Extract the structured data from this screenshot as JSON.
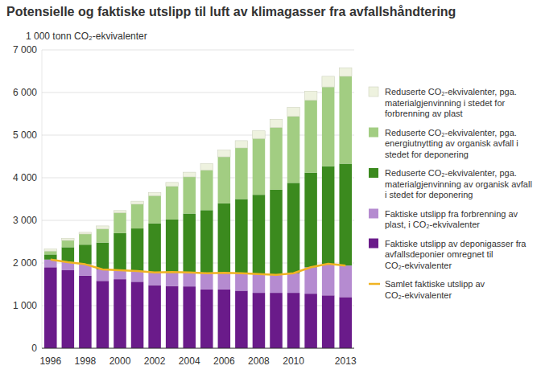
{
  "chart_data": {
    "type": "bar",
    "stacked": true,
    "grid": true,
    "legend": "right",
    "title": "Potensielle og faktiske utslipp til luft av klimagasser fra avfallshåndtering",
    "y_label": "1 000 tonn CO₂-ekvivalenter",
    "categories": [
      "1996",
      null,
      "1998",
      null,
      "2000",
      null,
      "2002",
      null,
      "2004",
      null,
      "2006",
      null,
      "2008",
      null,
      "2010",
      null,
      null,
      "2013"
    ],
    "ylim": [
      0,
      7000
    ],
    "yticks": [
      0,
      {
        "value": 1000,
        "label": "1 000"
      },
      {
        "value": 2000,
        "label": "2 000"
      },
      {
        "value": 3000,
        "label": "3 000"
      },
      {
        "value": 4000,
        "label": "4 000"
      },
      {
        "value": 5000,
        "label": "5 000"
      },
      {
        "value": 6000,
        "label": "6 000"
      },
      {
        "value": 7000,
        "label": "7 000"
      }
    ],
    "series": [
      {
        "name": "Faktiske utslipp av deponigasser fra avfallsdeponier omregnet til CO₂-ekvivalenter",
        "color": "#6a1b8a",
        "values": [
          1900,
          1830,
          1700,
          1580,
          1620,
          1560,
          1480,
          1460,
          1450,
          1380,
          1380,
          1350,
          1300,
          1300,
          1300,
          1280,
          1240,
          1200
        ]
      },
      {
        "name": "Faktiske utslipp fra forbrenning av plast, i CO₂-ekvivalenter",
        "color": "#b58bd0",
        "values": [
          180,
          190,
          270,
          270,
          210,
          250,
          300,
          330,
          330,
          380,
          390,
          410,
          440,
          420,
          460,
          620,
          740,
          740
        ]
      },
      {
        "name": "Reduserte CO₂-ekvivalenter, pga. materialgjenvinning av organisk avfall i stedet for deponering",
        "color": "#3b8a1e",
        "values": [
          120,
          350,
          460,
          630,
          870,
          1000,
          1150,
          1230,
          1380,
          1480,
          1630,
          1740,
          1860,
          2000,
          2120,
          2220,
          2290,
          2390
        ]
      },
      {
        "name": "Reduserte CO₂-ekvivalenter, pga. energiutnytting av organisk avfall i stedet for deponering",
        "color": "#a2cd82",
        "values": [
          80,
          160,
          250,
          320,
          480,
          570,
          650,
          780,
          860,
          940,
          1090,
          1200,
          1320,
          1460,
          1560,
          1700,
          1860,
          2050
        ]
      },
      {
        "name": "Reduserte CO₂-ekvivalenter, pga. materialgjenvinning i stedet for forbrenning av plast",
        "color": "#eef2df",
        "values": [
          50,
          50,
          40,
          70,
          50,
          70,
          70,
          90,
          110,
          150,
          160,
          170,
          180,
          190,
          210,
          210,
          250,
          200
        ]
      },
      {
        "name": "Samlet faktiske utslipp av CO₂-ekvivalenter",
        "color": "#f0b323",
        "type": "line",
        "values": [
          2080,
          2020,
          1970,
          1850,
          1830,
          1810,
          1780,
          1790,
          1780,
          1760,
          1770,
          1760,
          1740,
          1720,
          1760,
          1900,
          1980,
          1940
        ]
      }
    ]
  }
}
